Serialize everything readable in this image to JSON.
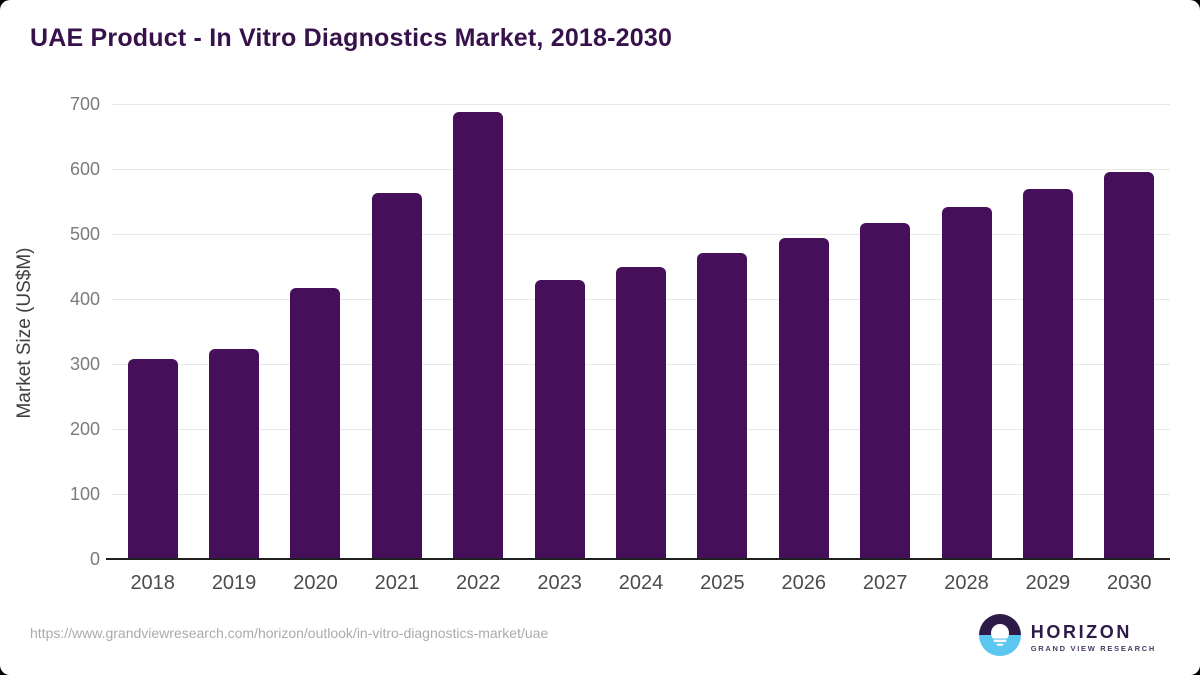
{
  "page": {
    "title": "UAE Product - In Vitro Diagnostics Market, 2018-2030",
    "source_url": "https://www.grandviewresearch.com/horizon/outlook/in-vitro-diagnostics-market/uae"
  },
  "logo": {
    "name": "HORIZON",
    "subtitle": "GRAND VIEW RESEARCH",
    "icon": "horizon-sun-circle-icon",
    "icon_colors": {
      "top_half": "#2E1A47",
      "bottom_half": "#5BC6EF",
      "sun": "#ffffff"
    }
  },
  "colors": {
    "title_text": "#37114B",
    "bar_fill": "#451059",
    "gridline": "#e8e8e8",
    "axis_line": "#1f1f1f",
    "ytick_text": "#7b7b7b",
    "xtick_text": "#4b4b4b",
    "url_text": "#ababab",
    "background": "#ffffff"
  },
  "chart_data": {
    "type": "bar",
    "title": "UAE Product - In Vitro Diagnostics Market, 2018-2030",
    "categories": [
      "2018",
      "2019",
      "2020",
      "2021",
      "2022",
      "2023",
      "2024",
      "2025",
      "2026",
      "2027",
      "2028",
      "2029",
      "2030"
    ],
    "values": [
      308,
      323,
      417,
      563,
      688,
      430,
      449,
      471,
      494,
      517,
      541,
      569,
      596
    ],
    "xlabel": "",
    "ylabel": "Market Size (US$M)",
    "ylim": [
      0,
      700
    ],
    "yticks": [
      0,
      100,
      200,
      300,
      400,
      500,
      600,
      700
    ],
    "grid": true,
    "legend": false,
    "bar_color": "#451059"
  }
}
